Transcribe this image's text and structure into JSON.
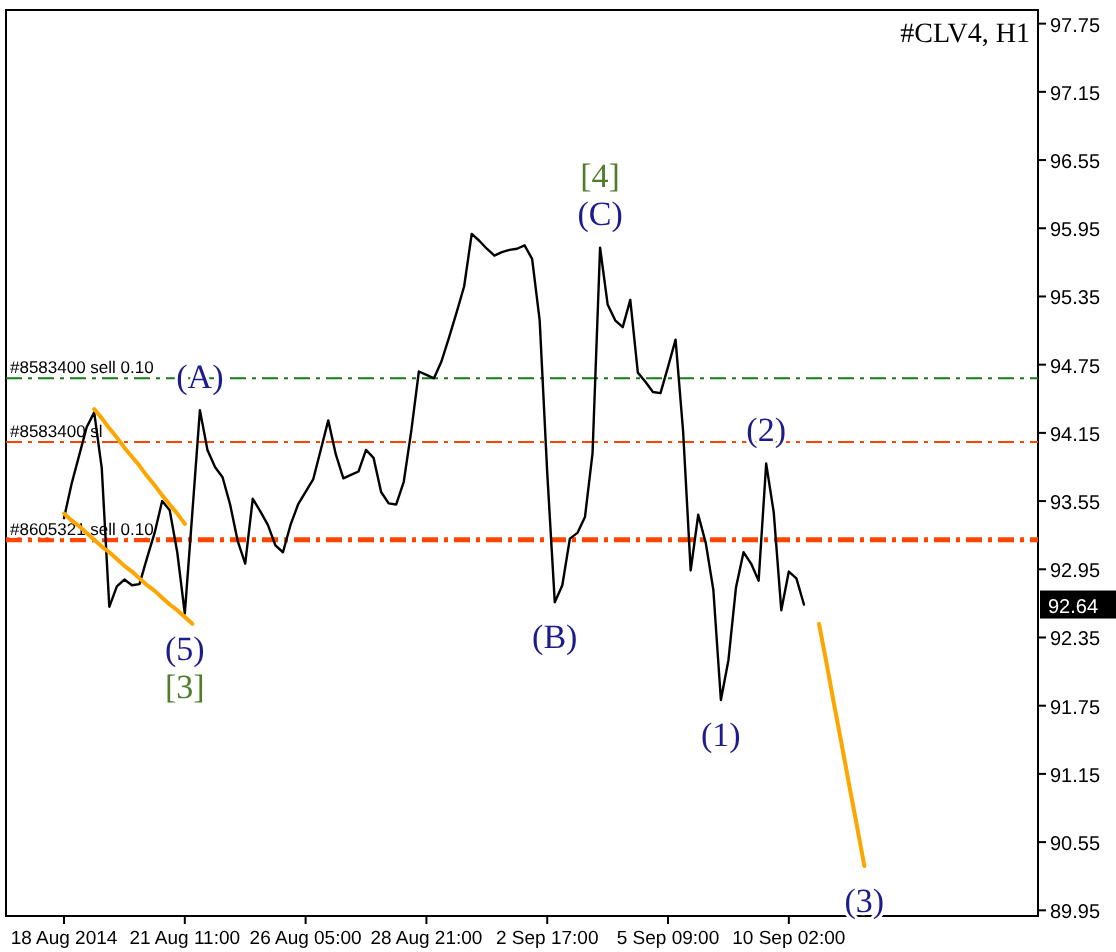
{
  "chart_data": {
    "type": "line",
    "title": "#CLV4, H1",
    "categories": [
      "18 Aug 2014",
      null,
      null,
      null,
      null,
      null,
      null,
      null,
      null,
      null,
      null,
      null,
      null,
      null,
      null,
      null,
      "21 Aug 11:00",
      null,
      null,
      null,
      null,
      null,
      null,
      null,
      null,
      null,
      null,
      null,
      null,
      null,
      null,
      null,
      "26 Aug 05:00",
      null,
      null,
      null,
      null,
      null,
      null,
      null,
      null,
      null,
      null,
      null,
      null,
      null,
      null,
      null,
      "28 Aug 21:00",
      null,
      null,
      null,
      null,
      null,
      null,
      null,
      null,
      null,
      null,
      null,
      null,
      null,
      null,
      null,
      "2 Sep 17:00",
      null,
      null,
      null,
      null,
      null,
      null,
      null,
      null,
      null,
      null,
      null,
      null,
      null,
      null,
      null,
      "5 Sep 09:00",
      null,
      null,
      null,
      null,
      null,
      null,
      null,
      null,
      null,
      null,
      null,
      null,
      null,
      null,
      null,
      "10 Sep 02:00",
      null,
      null,
      null,
      null,
      null,
      null,
      null,
      null,
      null,
      null,
      null,
      null,
      null,
      null,
      null,
      null,
      null,
      null,
      null,
      null,
      null,
      null,
      null,
      null,
      null,
      null,
      null,
      null,
      null,
      null,
      null,
      null,
      null
    ],
    "ylim": [
      89.9,
      97.87
    ],
    "yticks": [
      97.75,
      97.15,
      96.55,
      95.95,
      95.35,
      94.75,
      94.15,
      93.55,
      92.95,
      92.35,
      91.75,
      91.15,
      90.55,
      89.95
    ],
    "grid": false,
    "line_style": "solid",
    "marker": "none",
    "series": [
      {
        "color": "#000000",
        "values": [
          93.4,
          93.7,
          93.95,
          94.2,
          94.33,
          93.84,
          92.62,
          92.8,
          92.86,
          92.81,
          92.82,
          93.05,
          93.27,
          93.55,
          93.47,
          93.1,
          92.56,
          93.45,
          94.35,
          94.0,
          93.85,
          93.76,
          93.52,
          93.2,
          93.0,
          93.57,
          93.46,
          93.34,
          93.16,
          93.1,
          93.34,
          93.52,
          93.63,
          93.74,
          94.0,
          94.26,
          93.96,
          93.75,
          93.78,
          93.81,
          94.0,
          93.93,
          93.63,
          93.53,
          93.52,
          93.72,
          94.17,
          94.69,
          94.66,
          94.63,
          94.78,
          94.99,
          95.21,
          95.44,
          95.9,
          95.84,
          95.77,
          95.71,
          95.74,
          95.76,
          95.77,
          95.8,
          95.68,
          95.14,
          93.8,
          92.66,
          92.81,
          93.22,
          93.27,
          93.41,
          93.97,
          95.78,
          95.28,
          95.14,
          95.08,
          95.32,
          94.68,
          94.6,
          94.51,
          94.5,
          94.73,
          94.97,
          94.16,
          92.94,
          93.43,
          93.18,
          92.77,
          91.8,
          92.15,
          92.79,
          93.1,
          93.0,
          92.85,
          93.88,
          93.45,
          92.59,
          92.93,
          92.87,
          92.64,
          null,
          null,
          null,
          null,
          null,
          null,
          null,
          null,
          null,
          null,
          null,
          null,
          null,
          null,
          null,
          null,
          null,
          null,
          null,
          null,
          null,
          null,
          null,
          null,
          null,
          null,
          null,
          null,
          null,
          null,
          null
        ]
      },
      {
        "color": "#ffa500",
        "values": [
          null,
          null,
          null,
          null,
          null,
          null,
          null,
          null,
          null,
          null,
          null,
          null,
          null,
          null,
          null,
          null,
          null,
          null,
          null,
          null,
          null,
          null,
          null,
          null,
          null,
          null,
          null,
          null,
          null,
          null,
          null,
          null,
          null,
          null,
          null,
          null,
          null,
          null,
          null,
          null,
          null,
          null,
          null,
          null,
          null,
          null,
          null,
          null,
          null,
          null,
          null,
          null,
          null,
          null,
          null,
          null,
          null,
          null,
          null,
          null,
          null,
          null,
          null,
          null,
          null,
          null,
          null,
          null,
          null,
          null,
          null,
          null,
          null,
          null,
          null,
          null,
          null,
          null,
          null,
          null,
          null,
          null,
          null,
          null,
          null,
          null,
          null,
          null,
          null,
          null,
          null,
          null,
          null,
          null,
          null,
          null,
          null,
          null,
          null,
          null,
          92.47,
          92.12,
          91.76,
          91.41,
          91.05,
          90.7,
          90.34,
          null,
          null,
          null,
          null,
          null,
          null,
          null,
          null,
          null,
          null,
          null,
          null,
          null,
          null,
          null,
          null,
          null,
          null,
          null,
          null,
          null,
          null,
          null
        ]
      },
      {
        "color": "#ffa500",
        "values": [
          null,
          null,
          null,
          null,
          94.36,
          94.28,
          94.19,
          94.11,
          94.02,
          93.94,
          93.86,
          93.77,
          93.69,
          93.6,
          93.52,
          93.44,
          93.35,
          null,
          null,
          null,
          null,
          null,
          null,
          null,
          null,
          null,
          null,
          null,
          null,
          null,
          null,
          null,
          null,
          null,
          null,
          null,
          null,
          null,
          null,
          null,
          null,
          null,
          null,
          null,
          null,
          null,
          null,
          null,
          null,
          null,
          null,
          null,
          null,
          null,
          null,
          null,
          null,
          null,
          null,
          null,
          null,
          null,
          null,
          null,
          null,
          null,
          null,
          null,
          null,
          null,
          null,
          null,
          null,
          null,
          null,
          null,
          null,
          null,
          null,
          null,
          null,
          null,
          null,
          null,
          null,
          null,
          null,
          null,
          null,
          null,
          null,
          null,
          null,
          null,
          null,
          null,
          null,
          null,
          null,
          null,
          null,
          null,
          null,
          null,
          null,
          null,
          null,
          null,
          null,
          null,
          null,
          null,
          null,
          null,
          null,
          null,
          null,
          null,
          null,
          null,
          null,
          null,
          null,
          null,
          null,
          null,
          null,
          null,
          null,
          null
        ]
      },
      {
        "color": "#ffa500",
        "values": [
          93.44,
          93.38,
          93.33,
          93.27,
          93.21,
          93.15,
          93.1,
          93.04,
          92.98,
          92.93,
          92.87,
          92.81,
          92.76,
          92.7,
          92.64,
          92.59,
          92.53,
          92.47,
          null,
          null,
          null,
          null,
          null,
          null,
          null,
          null,
          null,
          null,
          null,
          null,
          null,
          null,
          null,
          null,
          null,
          null,
          null,
          null,
          null,
          null,
          null,
          null,
          null,
          null,
          null,
          null,
          null,
          null,
          null,
          null,
          null,
          null,
          null,
          null,
          null,
          null,
          null,
          null,
          null,
          null,
          null,
          null,
          null,
          null,
          null,
          null,
          null,
          null,
          null,
          null,
          null,
          null,
          null,
          null,
          null,
          null,
          null,
          null,
          null,
          null,
          null,
          null,
          null,
          null,
          null,
          null,
          null,
          null,
          null,
          null,
          null,
          null,
          null,
          null,
          null,
          null,
          null,
          null,
          null,
          null,
          null,
          null,
          null,
          null,
          null,
          null,
          null,
          null,
          null,
          null,
          null,
          null,
          null,
          null,
          null,
          null,
          null,
          null,
          null,
          null,
          null,
          null,
          null,
          null,
          null,
          null,
          null,
          null,
          null,
          null
        ]
      }
    ],
    "ref_lines": [
      {
        "axis": "y",
        "value": 94.63,
        "label": "#8583400 sell 0.10",
        "color": "#1a7a1a",
        "line_style": "dashed"
      },
      {
        "axis": "y",
        "value": 94.07,
        "label": "#8583400 sl",
        "color": "#ff4500",
        "line_style": "dashed"
      },
      {
        "axis": "y",
        "value": 93.21,
        "label": "#8605321 sell 0.10",
        "color": "#ff4500",
        "line_style": "dashed"
      }
    ],
    "annotations": [
      {
        "text": "[4]",
        "y": 95.78
      },
      {
        "text": "(C)",
        "y": 95.78
      },
      {
        "text": "(A)",
        "y": 94.35
      },
      {
        "text": "(2)",
        "y": 93.88
      },
      {
        "text": "(5)",
        "y": 92.56
      },
      {
        "text": "[3]",
        "y": 92.56
      },
      {
        "text": "(B)",
        "y": 92.66
      },
      {
        "text": "(1)",
        "y": 91.8
      },
      {
        "text": "(3)",
        "y": 90.34
      },
      "92.64"
    ]
  }
}
